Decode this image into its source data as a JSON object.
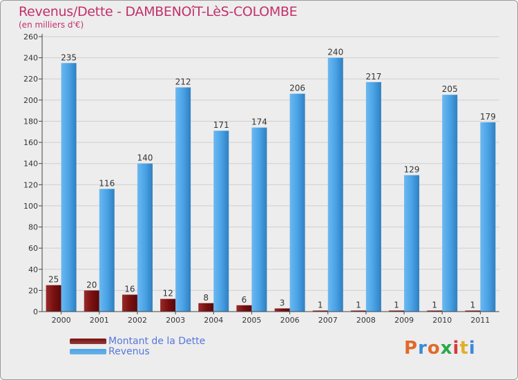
{
  "title": "Revenus/Dette - DAMBENOîT-LèS-COLOMBE",
  "subtitle": "(en milliers d'€)",
  "legend": [
    {
      "label": "Montant de la Dette",
      "color": "#7a1010"
    },
    {
      "label": "Revenus",
      "color": "#4aa3e6"
    }
  ],
  "logo": {
    "text": "Proxiti",
    "colors": [
      "#e06a2a",
      "#3a8bd6",
      "#e06a2a",
      "#2aa84a",
      "#d63a3a",
      "#e0b02a",
      "#3a8bd6"
    ]
  },
  "colors": {
    "dette": "#7a1010",
    "revenus": "#4aa3e6",
    "axis": "#444444",
    "grid": "#cfcfcf",
    "label": "#333333"
  },
  "chart_data": {
    "type": "bar",
    "categories": [
      "2000",
      "2001",
      "2002",
      "2003",
      "2004",
      "2005",
      "2006",
      "2007",
      "2008",
      "2009",
      "2010",
      "2011"
    ],
    "series": [
      {
        "name": "Montant de la Dette",
        "values": [
          25,
          20,
          16,
          12,
          8,
          6,
          3,
          1,
          1,
          1,
          1,
          1
        ]
      },
      {
        "name": "Revenus",
        "values": [
          235,
          116,
          140,
          212,
          171,
          174,
          206,
          240,
          217,
          129,
          205,
          179
        ]
      }
    ],
    "yticks": [
      0,
      20,
      40,
      60,
      80,
      100,
      120,
      140,
      160,
      180,
      200,
      220,
      240,
      260
    ],
    "ylim": [
      0,
      260
    ],
    "grid": true,
    "legend_position": "bottom-left",
    "xlabel": "",
    "ylabel": ""
  }
}
